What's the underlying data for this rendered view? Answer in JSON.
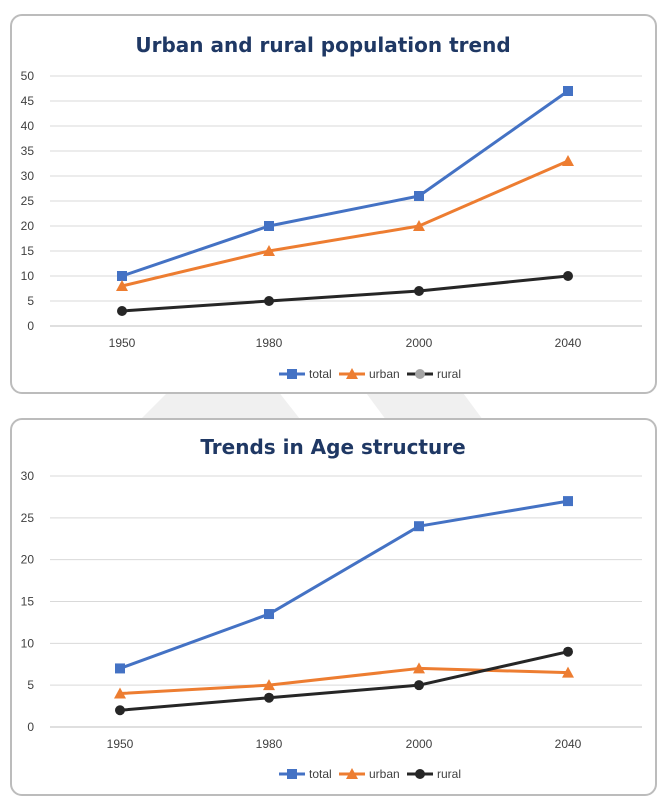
{
  "chart_data": [
    {
      "type": "line",
      "title": "Urban and rural population trend",
      "categories": [
        "1950",
        "1980",
        "2000",
        "2040"
      ],
      "ylim": [
        0,
        50
      ],
      "yticks": [
        0,
        5,
        10,
        15,
        20,
        25,
        30,
        35,
        40,
        45,
        50
      ],
      "grid": true,
      "legend": "bottom",
      "series": [
        {
          "name": "total",
          "values": [
            10,
            20,
            26,
            47
          ],
          "color": "#4472c4",
          "marker": "square"
        },
        {
          "name": "urban",
          "values": [
            8,
            15,
            20,
            33
          ],
          "color": "#ed7d31",
          "marker": "triangle"
        },
        {
          "name": "rural",
          "values": [
            3,
            5,
            7,
            10
          ],
          "color": "#262626",
          "marker": "circle"
        }
      ],
      "legend_marker_colors": [
        "#4472c4",
        "#ed7d31",
        "#a5a5a5"
      ]
    },
    {
      "type": "line",
      "title": "Trends in Age structure",
      "categories": [
        "1950",
        "1980",
        "2000",
        "2040"
      ],
      "ylim": [
        0,
        30
      ],
      "yticks": [
        0,
        5,
        10,
        15,
        20,
        25,
        30
      ],
      "grid": true,
      "legend": "bottom",
      "series": [
        {
          "name": "total",
          "values": [
            7,
            13.5,
            24,
            27
          ],
          "color": "#4472c4",
          "marker": "square"
        },
        {
          "name": "urban",
          "values": [
            4,
            5,
            7,
            6.5
          ],
          "color": "#ed7d31",
          "marker": "triangle"
        },
        {
          "name": "rural",
          "values": [
            2,
            3.5,
            5,
            9
          ],
          "color": "#262626",
          "marker": "circle"
        }
      ],
      "legend_marker_colors": [
        "#4472c4",
        "#ed7d31",
        "#262626"
      ]
    }
  ]
}
